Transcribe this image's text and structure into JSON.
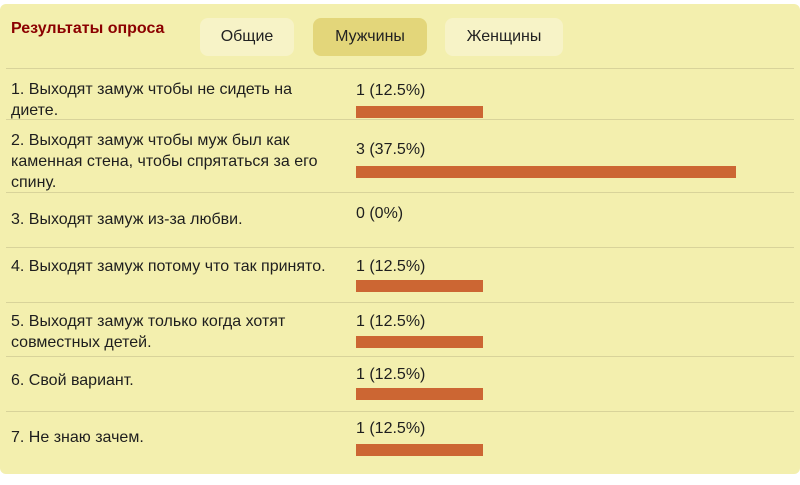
{
  "poll": {
    "title": "Результаты опроса",
    "tabs": [
      {
        "label": "Общие",
        "active": false
      },
      {
        "label": "Мужчины",
        "active": true
      },
      {
        "label": "Женщины",
        "active": false
      }
    ],
    "bar_color": "#cc6633",
    "items": [
      {
        "question": "1. Выходят замуж чтобы не сидеть на диете.",
        "result": "1 (12.5%)",
        "percent": 12.5
      },
      {
        "question": "2. Выходят замуж чтобы муж был как каменная стена, чтобы спрятаться за его спину.",
        "result": "3 (37.5%)",
        "percent": 37.5
      },
      {
        "question": "3. Выходят замуж из-за любви.",
        "result": "0 (0%)",
        "percent": 0
      },
      {
        "question": "4. Выходят замуж потому что так принято.",
        "result": "1 (12.5%)",
        "percent": 12.5
      },
      {
        "question": "5. Выходят замуж только когда хотят совместных детей.",
        "result": "1 (12.5%)",
        "percent": 12.5
      },
      {
        "question": "6. Свой вариант.",
        "result": "1 (12.5%)",
        "percent": 12.5
      },
      {
        "question": "7. Не знаю зачем.",
        "result": "1 (12.5%)",
        "percent": 12.5
      }
    ]
  }
}
